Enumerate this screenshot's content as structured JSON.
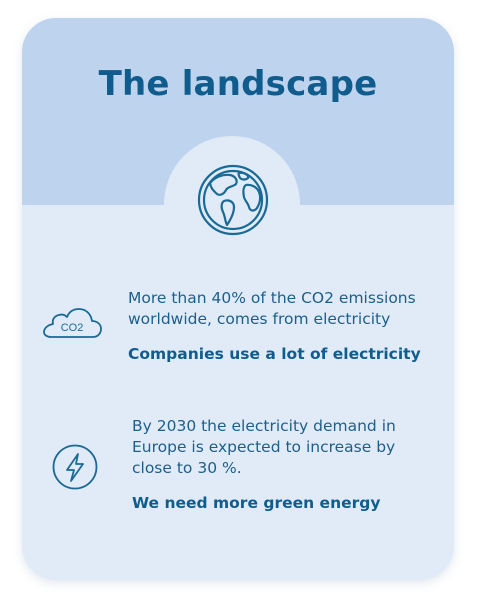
{
  "card": {
    "title": "The landscape",
    "colors": {
      "header_background": "#bed3ee",
      "body_background": "#e1ebf7",
      "accent": "#0f5c8d"
    },
    "header_icon": "globe-icon"
  },
  "facts": [
    {
      "icon": "co2-cloud-icon",
      "icon_label": "CO2",
      "text": "More than 40% of the CO2 emissions worldwide, comes from electricity",
      "highlight": "Companies use a lot of electricity"
    },
    {
      "icon": "lightning-bolt-icon",
      "text": "By 2030 the electricity demand in Europe is expected to increase by close to 30 %.",
      "highlight": "We need more green energy"
    }
  ]
}
